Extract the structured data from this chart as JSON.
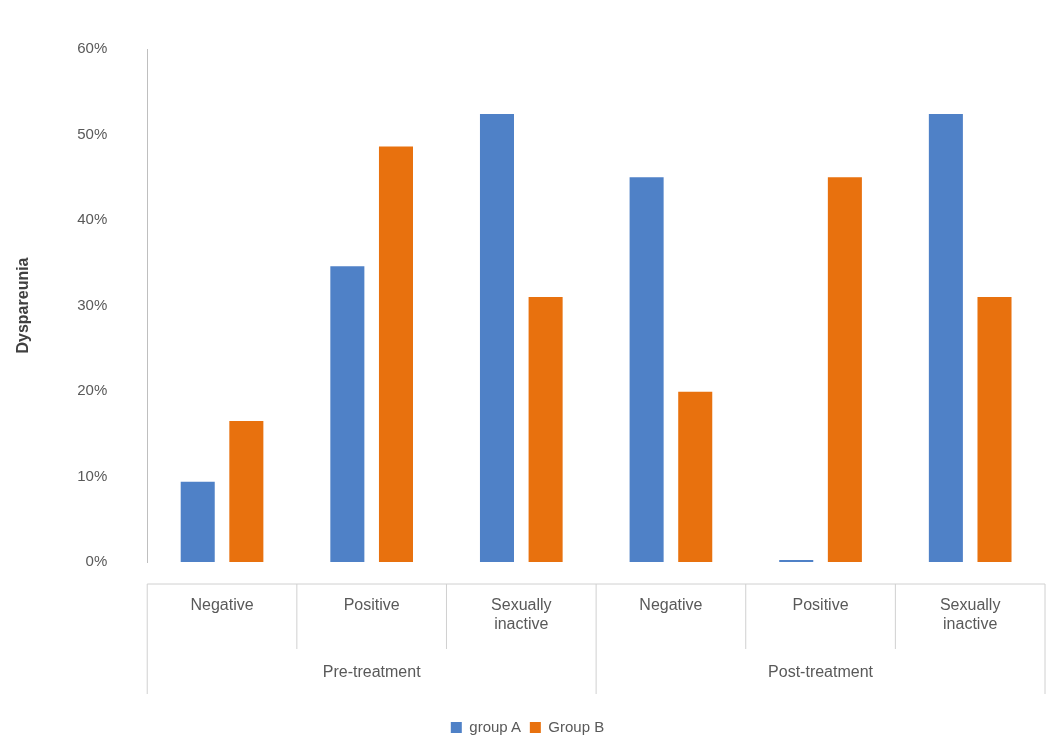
{
  "chart_data": {
    "type": "bar",
    "ylabel": "Dyspareunia",
    "categories": [
      "Negative",
      "Positive",
      "Sexually inactive",
      "Negative",
      "Positive",
      "Sexually inactive"
    ],
    "series": [
      {
        "name": "group A",
        "color": "#4f81c7",
        "values": [
          9.4,
          34.6,
          52.4,
          45,
          0,
          52.4
        ]
      },
      {
        "name": "Group B",
        "color": "#e8710e",
        "values": [
          16.5,
          48.6,
          31,
          19.9,
          45,
          31
        ]
      }
    ],
    "annotations": [
      "Pre-treatment",
      "Post-treatment"
    ],
    "ylim": [
      0,
      60
    ],
    "yticks": [
      {
        "value": 0,
        "label": "0%"
      },
      {
        "value": 10,
        "label": "10%"
      },
      {
        "value": 20,
        "label": "20%"
      },
      {
        "value": 30,
        "label": "30%"
      },
      {
        "value": 40,
        "label": "40%"
      },
      {
        "value": 50,
        "label": "50%"
      },
      {
        "value": 60,
        "label": "60%"
      }
    ],
    "grid": false,
    "legend": "bottom"
  }
}
